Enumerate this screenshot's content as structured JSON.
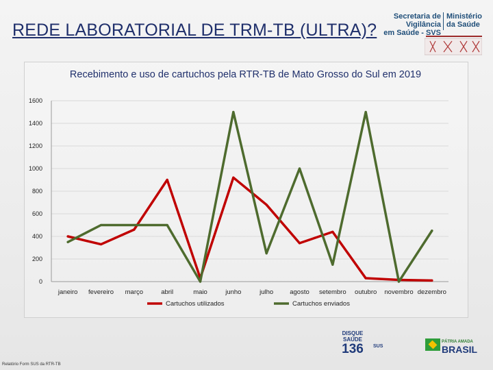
{
  "slide": {
    "title": "REDE LABORATORIAL DE TRM-TB (ULTRA)?",
    "footnote": "Relatório Form SUS da RTR-TB"
  },
  "logos": {
    "secretaria_line1": "Secretaria de Vigilância",
    "secretaria_line2": "em Saúde - SVS",
    "ministerio_line1": "Ministério",
    "ministerio_line2": "da Saúde",
    "disque_line1": "DISQUE",
    "disque_line2": "SAÚDE",
    "disque_number": "136",
    "sus": "SUS",
    "patria": "PÁTRIA AMADA",
    "brasil": "BRASIL"
  },
  "chart_data": {
    "type": "line",
    "title": "Recebimento e uso de cartuchos pela RTR-TB de Mato Grosso do Sul em 2019",
    "categories": [
      "janeiro",
      "fevereiro",
      "março",
      "abril",
      "maio",
      "junho",
      "julho",
      "agosto",
      "setembro",
      "outubro",
      "novembro",
      "dezembro"
    ],
    "ylim": [
      0,
      1600
    ],
    "yticks": [
      "0",
      "200",
      "400",
      "600",
      "800",
      "1000",
      "1200",
      "1400",
      "1600"
    ],
    "grid": true,
    "legend": "bottom",
    "series": [
      {
        "name": "Cartuchos utilizados",
        "color": "#c00000",
        "values": [
          400,
          330,
          460,
          900,
          30,
          920,
          680,
          340,
          440,
          30,
          15,
          10
        ]
      },
      {
        "name": "Cartuchos enviados",
        "color": "#4e6b2e",
        "values": [
          350,
          500,
          500,
          500,
          0,
          1500,
          250,
          1000,
          150,
          1500,
          0,
          450
        ]
      }
    ]
  }
}
